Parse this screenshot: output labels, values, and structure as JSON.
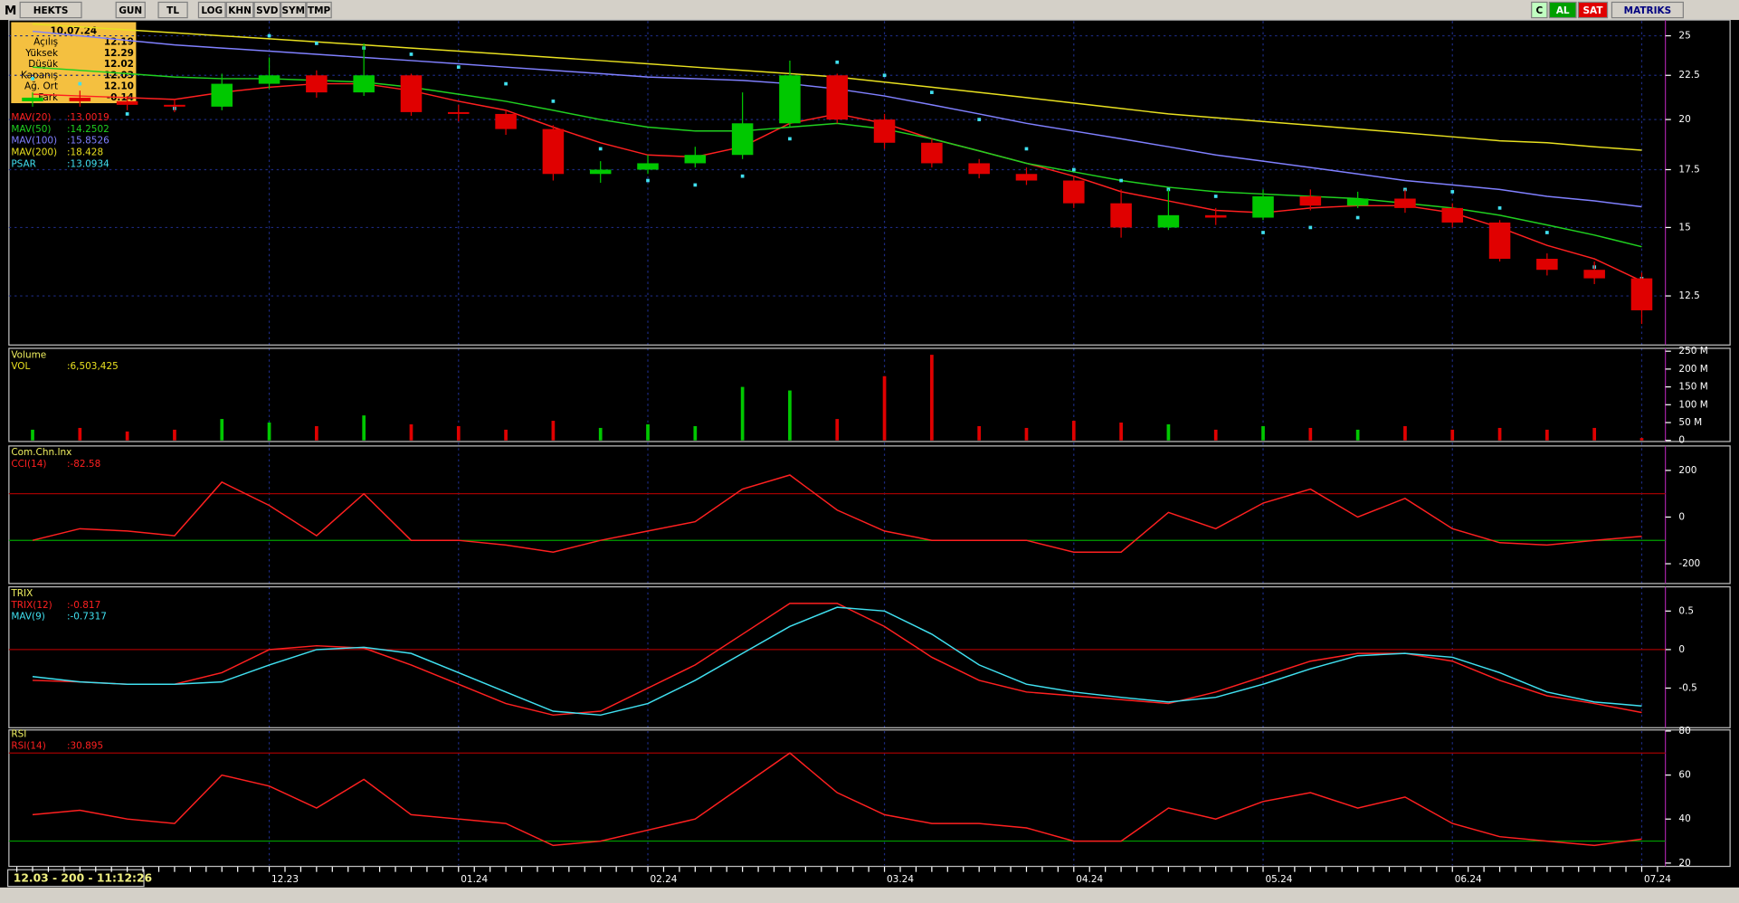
{
  "toolbar": {
    "logo": "M",
    "left": [
      "HEKTS",
      "GUN",
      "TL",
      "LOG",
      "KHN",
      "SVD",
      "SYM",
      "TMP"
    ],
    "right": [
      "C",
      "AL",
      "SAT",
      "MATRIKS"
    ]
  },
  "info_box": {
    "date": "10.07.24",
    "rows": [
      {
        "label": "Açılış",
        "value": "12.19"
      },
      {
        "label": "Yüksek",
        "value": "12.29"
      },
      {
        "label": "Düşük",
        "value": "12.02"
      },
      {
        "label": "Kapanış",
        "value": "12.03"
      },
      {
        "label": "Ağ. Ort",
        "value": "12.10"
      },
      {
        "label": "Fark",
        "value": "-0.14"
      }
    ]
  },
  "status": "12.03 - 200 - 11:12:26",
  "chart_data": [
    {
      "type": "candlestick",
      "log_scale": true,
      "ylim": [
        11,
        26
      ],
      "yticks": [
        12.5,
        15,
        17.5,
        20,
        22.5,
        25
      ],
      "grid": true,
      "up_color": "#00c800",
      "down_color": "#e00000",
      "categories": [
        null,
        null,
        null,
        null,
        null,
        "12.23",
        null,
        null,
        null,
        "01.24",
        null,
        null,
        null,
        "02.24",
        null,
        null,
        null,
        null,
        "03.24",
        null,
        null,
        null,
        "04.24",
        null,
        null,
        null,
        "05.24",
        null,
        null,
        null,
        "06.24",
        null,
        null,
        null,
        "07.24"
      ],
      "open": [
        21.0,
        21.2,
        21.0,
        20.8,
        20.7,
        22.0,
        22.5,
        21.5,
        22.5,
        20.4,
        20.3,
        19.5,
        17.3,
        17.5,
        17.8,
        18.2,
        19.8,
        22.5,
        20.0,
        18.8,
        17.8,
        17.3,
        17.0,
        16.0,
        15.0,
        15.5,
        15.4,
        16.3,
        15.9,
        16.2,
        15.8,
        15.2,
        13.8,
        13.4,
        13.1
      ],
      "high": [
        21.5,
        21.6,
        21.3,
        21.1,
        22.6,
        23.6,
        22.8,
        24.5,
        22.6,
        20.8,
        20.5,
        19.7,
        17.9,
        18.2,
        18.6,
        21.5,
        23.4,
        22.6,
        20.3,
        19.0,
        18.0,
        17.6,
        17.2,
        16.6,
        16.6,
        15.8,
        16.6,
        16.6,
        16.5,
        16.6,
        16.0,
        15.3,
        14.0,
        13.7,
        13.3
      ],
      "low": [
        20.7,
        20.7,
        20.5,
        20.4,
        20.5,
        21.7,
        21.2,
        21.3,
        20.2,
        19.9,
        19.2,
        17.0,
        16.9,
        17.3,
        17.6,
        18.0,
        19.6,
        19.8,
        18.5,
        17.6,
        17.1,
        16.8,
        15.8,
        14.6,
        14.9,
        15.1,
        15.3,
        15.7,
        15.8,
        15.6,
        15.0,
        13.7,
        13.2,
        12.9,
        11.6
      ],
      "close": [
        21.2,
        21.0,
        20.8,
        20.7,
        22.0,
        22.5,
        21.5,
        22.5,
        20.4,
        20.3,
        19.5,
        17.3,
        17.5,
        17.8,
        18.2,
        19.8,
        22.5,
        20.0,
        18.8,
        17.8,
        17.3,
        17.0,
        16.0,
        15.0,
        15.5,
        15.4,
        16.3,
        15.9,
        16.2,
        15.8,
        15.2,
        13.8,
        13.4,
        13.1,
        12.03
      ],
      "series": [
        {
          "name": "MAV(20)",
          "last_label": ":13.0019",
          "color": "#ff2020",
          "style": "line",
          "values": [
            21.4,
            21.3,
            21.2,
            21.1,
            21.5,
            21.8,
            22.0,
            22.0,
            21.6,
            21.0,
            20.5,
            19.6,
            18.8,
            18.2,
            18.1,
            18.6,
            19.8,
            20.3,
            19.8,
            19.0,
            18.4,
            17.8,
            17.2,
            16.5,
            16.1,
            15.7,
            15.6,
            15.8,
            15.9,
            15.9,
            15.6,
            15.0,
            14.3,
            13.8,
            13.0019
          ]
        },
        {
          "name": "MAV(50)",
          "last_label": ":14.2502",
          "color": "#20d020",
          "style": "line",
          "values": [
            23.0,
            22.8,
            22.6,
            22.4,
            22.3,
            22.3,
            22.2,
            22.1,
            21.8,
            21.4,
            21.0,
            20.5,
            20.0,
            19.6,
            19.4,
            19.4,
            19.6,
            19.8,
            19.5,
            19.0,
            18.4,
            17.8,
            17.4,
            17.0,
            16.7,
            16.5,
            16.4,
            16.3,
            16.2,
            16.0,
            15.8,
            15.5,
            15.1,
            14.7,
            14.2502
          ]
        },
        {
          "name": "MAV(100)",
          "last_label": ":15.8526",
          "color": "#8080ff",
          "style": "line",
          "values": [
            25.3,
            25.0,
            24.7,
            24.4,
            24.2,
            24.0,
            23.8,
            23.6,
            23.4,
            23.2,
            23.0,
            22.8,
            22.6,
            22.4,
            22.3,
            22.2,
            22.0,
            21.7,
            21.3,
            20.8,
            20.3,
            19.8,
            19.4,
            19.0,
            18.6,
            18.2,
            17.9,
            17.6,
            17.3,
            17.0,
            16.8,
            16.6,
            16.3,
            16.1,
            15.8526
          ]
        },
        {
          "name": "MAV(200)",
          "last_label": ":18.428",
          "color": "#e8e020",
          "style": "line",
          "values": [
            25.8,
            25.6,
            25.4,
            25.2,
            25.0,
            24.8,
            24.6,
            24.4,
            24.2,
            24.0,
            23.8,
            23.6,
            23.4,
            23.2,
            23.0,
            22.8,
            22.6,
            22.4,
            22.1,
            21.8,
            21.5,
            21.2,
            20.9,
            20.6,
            20.3,
            20.1,
            19.9,
            19.7,
            19.5,
            19.3,
            19.1,
            18.9,
            18.8,
            18.6,
            18.428
          ]
        },
        {
          "name": "PSAR",
          "last_label": ":13.0934",
          "color": "#40e0f0",
          "style": "dots",
          "values": [
            22.3,
            22.0,
            20.3,
            20.6,
            20.8,
            25.0,
            24.5,
            24.2,
            23.8,
            23.0,
            22.0,
            21.0,
            18.5,
            17.0,
            16.8,
            17.2,
            19.0,
            23.3,
            22.5,
            21.5,
            20.0,
            18.5,
            17.5,
            17.0,
            16.6,
            16.3,
            14.8,
            15.0,
            15.4,
            16.6,
            16.5,
            15.8,
            14.8,
            13.5,
            13.0934
          ]
        }
      ]
    },
    {
      "type": "bar",
      "title": "Volume",
      "ylim": [
        0,
        255
      ],
      "yticks": [
        0,
        {
          "value": 50,
          "label": "50 M"
        },
        {
          "value": 100,
          "label": "100 M"
        },
        {
          "value": 150,
          "label": "150 M"
        },
        {
          "value": 200,
          "label": "200 M"
        },
        {
          "value": 250,
          "label": "250 M"
        }
      ],
      "up_color": "#00c800",
      "down_color": "#e00000",
      "series": [
        {
          "name": "VOL",
          "last_label": ":6,503,425",
          "color": "#e8e020",
          "values": [
            30,
            35,
            25,
            30,
            60,
            50,
            40,
            70,
            45,
            40,
            30,
            55,
            35,
            45,
            40,
            150,
            140,
            60,
            180,
            240,
            40,
            35,
            55,
            50,
            45,
            30,
            40,
            35,
            30,
            40,
            30,
            35,
            30,
            35,
            6.503425
          ]
        }
      ]
    },
    {
      "type": "line",
      "title": "Com.Chn.Inx",
      "ylim": [
        -280,
        300
      ],
      "yticks": [
        -200,
        0,
        200
      ],
      "ref_lines": [
        {
          "value": 100,
          "color": "#a00000"
        },
        {
          "value": -100,
          "color": "#00a000"
        }
      ],
      "series": [
        {
          "name": "CCI(14)",
          "last_label": ":-82.58",
          "color": "#ff2020",
          "values": [
            -100,
            -50,
            -60,
            -80,
            150,
            50,
            -80,
            100,
            -100,
            -100,
            -120,
            -150,
            -100,
            -60,
            -20,
            120,
            180,
            30,
            -60,
            -100,
            -100,
            -100,
            -150,
            -150,
            20,
            -50,
            60,
            120,
            0,
            80,
            -50,
            -110,
            -120,
            -100,
            -82.58
          ]
        }
      ]
    },
    {
      "type": "line",
      "title": "TRIX",
      "ylim": [
        -1,
        0.8
      ],
      "yticks": [
        -0.5,
        0,
        0.5
      ],
      "ref_lines": [
        {
          "value": 0,
          "color": "#a00000"
        }
      ],
      "series": [
        {
          "name": "TRIX(12)",
          "last_label": ":-0.817",
          "color": "#ff2020",
          "values": [
            -0.4,
            -0.42,
            -0.45,
            -0.45,
            -0.3,
            0.0,
            0.05,
            0.02,
            -0.2,
            -0.45,
            -0.7,
            -0.85,
            -0.8,
            -0.5,
            -0.2,
            0.2,
            0.6,
            0.6,
            0.3,
            -0.1,
            -0.4,
            -0.55,
            -0.6,
            -0.65,
            -0.7,
            -0.55,
            -0.35,
            -0.15,
            -0.05,
            -0.05,
            -0.15,
            -0.4,
            -0.6,
            -0.7,
            -0.817
          ]
        },
        {
          "name": "MAV(9)",
          "last_label": ":-0.7317",
          "color": "#40e0f0",
          "values": [
            -0.35,
            -0.42,
            -0.45,
            -0.45,
            -0.42,
            -0.2,
            0.0,
            0.03,
            -0.05,
            -0.3,
            -0.55,
            -0.8,
            -0.85,
            -0.7,
            -0.4,
            -0.05,
            0.3,
            0.55,
            0.5,
            0.2,
            -0.2,
            -0.45,
            -0.55,
            -0.62,
            -0.68,
            -0.62,
            -0.45,
            -0.25,
            -0.08,
            -0.05,
            -0.1,
            -0.3,
            -0.55,
            -0.68,
            -0.7317
          ]
        }
      ]
    },
    {
      "type": "line",
      "title": "RSI",
      "ylim": [
        19,
        80
      ],
      "yticks": [
        20,
        40,
        60,
        80
      ],
      "ref_lines": [
        {
          "value": 70,
          "color": "#a00000"
        },
        {
          "value": 30,
          "color": "#00a000"
        }
      ],
      "series": [
        {
          "name": "RSI(14)",
          "last_label": ":30.895",
          "color": "#ff2020",
          "values": [
            42,
            44,
            40,
            38,
            60,
            55,
            45,
            58,
            42,
            40,
            38,
            28,
            30,
            35,
            40,
            55,
            70,
            52,
            42,
            38,
            38,
            36,
            30,
            30,
            45,
            40,
            48,
            52,
            45,
            50,
            38,
            32,
            30,
            28,
            30.895
          ]
        }
      ]
    }
  ]
}
